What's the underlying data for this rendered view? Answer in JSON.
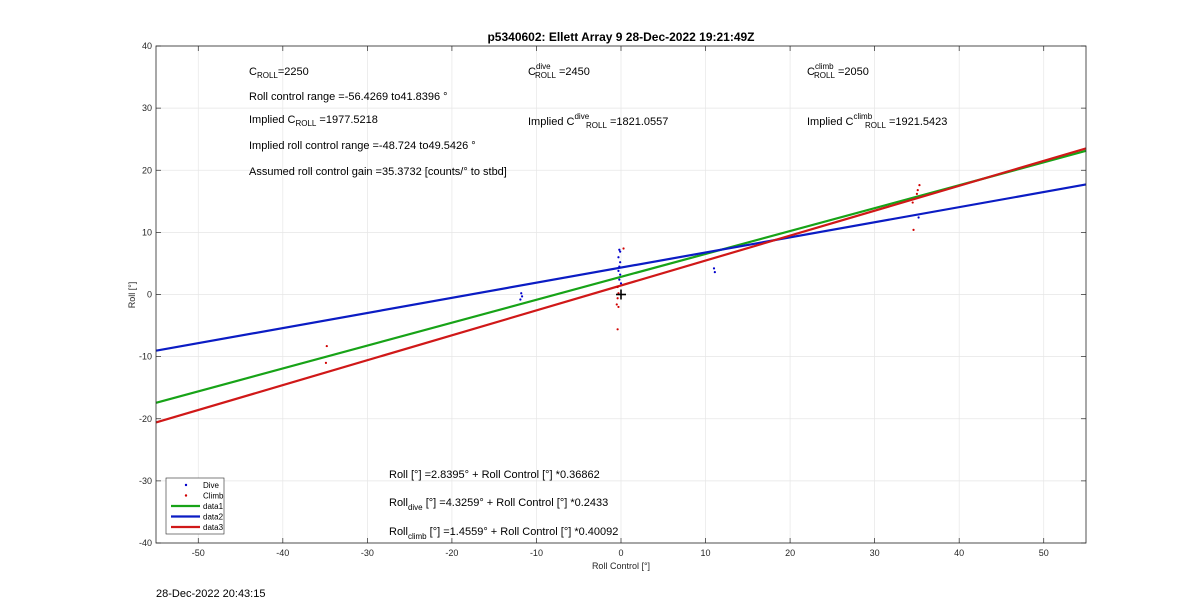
{
  "chart_data": {
    "type": "scatter",
    "title": "p5340602: Ellett Array 9 28-Dec-2022 19:21:49Z",
    "xlabel": "Roll Control [°]",
    "ylabel": "Roll [°]",
    "xlim": [
      -55,
      55
    ],
    "ylim": [
      -40,
      40
    ],
    "xticks": [
      -50,
      -40,
      -30,
      -20,
      -10,
      0,
      10,
      20,
      30,
      40,
      50
    ],
    "yticks": [
      -40,
      -30,
      -20,
      -10,
      0,
      10,
      20,
      30,
      40
    ],
    "grid": true,
    "legend": {
      "placement": "bottom-left",
      "entries": [
        {
          "label": "Dive",
          "kind": "marker",
          "color": "#0000cc"
        },
        {
          "label": "Climb",
          "kind": "marker",
          "color": "#d00000"
        },
        {
          "label": "data1",
          "kind": "line",
          "color": "#17a317"
        },
        {
          "label": "data2",
          "kind": "line",
          "color": "#0b1cc4"
        },
        {
          "label": "data3",
          "kind": "line",
          "color": "#d01818"
        }
      ]
    },
    "series": [
      {
        "name": "Dive",
        "kind": "scatter",
        "color": "#0000cc",
        "points": [
          [
            -11.8,
            0.2
          ],
          [
            -11.7,
            -0.3
          ],
          [
            -11.9,
            -0.8
          ],
          [
            -0.2,
            7.2
          ],
          [
            -0.1,
            6.9
          ],
          [
            -0.3,
            6.0
          ],
          [
            -0.1,
            5.2
          ],
          [
            -0.2,
            4.5
          ],
          [
            -0.3,
            3.8
          ],
          [
            -0.1,
            3.2
          ],
          [
            -0.2,
            2.4
          ],
          [
            0.0,
            1.8
          ],
          [
            11.0,
            4.2
          ],
          [
            11.1,
            3.6
          ],
          [
            35.2,
            12.4
          ]
        ]
      },
      {
        "name": "Climb",
        "kind": "scatter",
        "color": "#d00000",
        "points": [
          [
            -34.8,
            -8.3
          ],
          [
            -34.9,
            -11.0
          ],
          [
            0.3,
            7.4
          ],
          [
            -0.4,
            1.2
          ],
          [
            -0.3,
            0.2
          ],
          [
            -0.4,
            -0.6
          ],
          [
            -0.5,
            -1.6
          ],
          [
            -0.3,
            -2.0
          ],
          [
            -0.4,
            -5.6
          ],
          [
            34.5,
            14.8
          ],
          [
            34.6,
            10.4
          ],
          [
            35.0,
            16.2
          ],
          [
            35.1,
            16.8
          ],
          [
            35.3,
            17.6
          ]
        ]
      },
      {
        "name": "data1",
        "kind": "line",
        "color": "#17a317",
        "x": [
          -55,
          55
        ],
        "y": [
          -17.44,
          23.12
        ]
      },
      {
        "name": "data2",
        "kind": "line",
        "color": "#0b1cc4",
        "x": [
          -55,
          55
        ],
        "y": [
          -9.05,
          17.71
        ]
      },
      {
        "name": "data3",
        "kind": "line",
        "color": "#d01818",
        "x": [
          -55,
          55
        ],
        "y": [
          -20.6,
          23.51
        ]
      }
    ],
    "current_marker": {
      "x": 0,
      "y": 0
    }
  },
  "annotations": {
    "c_roll": {
      "base": "C",
      "sub": "ROLL",
      "value": "=2250"
    },
    "c_roll_dive": {
      "base": "C",
      "sup": "dive",
      "sub": "ROLL",
      "value": " =2450"
    },
    "c_roll_climb": {
      "base": "C",
      "sup": "climb",
      "sub": "ROLL",
      "value": " =2050"
    },
    "roll_control_range": "Roll control range =-56.4269 to41.8396 °",
    "implied_c_roll": {
      "prefix": "Implied C",
      "sub": "ROLL",
      "value": " =1977.5218"
    },
    "implied_c_roll_dive": {
      "prefix": "Implied C",
      "sup": "dive",
      "sub": "ROLL",
      "value": " =1821.0557"
    },
    "implied_c_roll_climb": {
      "prefix": "Implied C",
      "sup": "climb",
      "sub": "ROLL",
      "value": " =1921.5423"
    },
    "implied_roll_range": "Implied roll control range =-48.724 to49.5426 °",
    "assumed_gain": "Assumed roll control gain =35.3732 [counts/° to stbd]",
    "fit_all": "Roll [°] =2.8395° + Roll Control [°] *0.36862",
    "fit_dive": {
      "prefix": "Roll",
      "sub": "dive",
      "rest": " [°] =4.3259° + Roll Control [°] *0.2433"
    },
    "fit_climb": {
      "prefix": "Roll",
      "sub": "climb",
      "rest": " [°] =1.4559° + Roll Control [°] *0.40092"
    }
  },
  "timestamp": "28-Dec-2022 20:43:15"
}
